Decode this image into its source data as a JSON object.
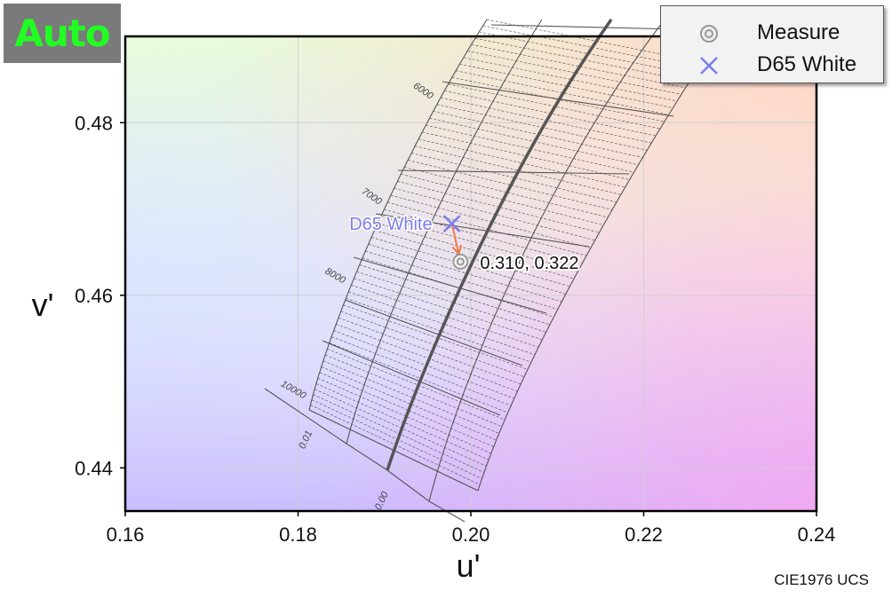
{
  "badge": {
    "label": "Auto",
    "color": "#22ff22"
  },
  "chart_data": {
    "type": "scatter",
    "title": "",
    "xlabel": "u'",
    "ylabel": "v'",
    "xlim": [
      0.16,
      0.24
    ],
    "ylim": [
      0.435,
      0.49
    ],
    "x_ticks": [
      "0.16",
      "0.18",
      "0.20",
      "0.22",
      "0.24"
    ],
    "y_ticks": [
      "0.44",
      "0.46",
      "0.48"
    ],
    "grid": true,
    "legend_position": "top-right",
    "series": [
      {
        "name": "Measure",
        "points": [
          {
            "x": 0.1988,
            "y": 0.4639
          }
        ],
        "color": "#9a9a9a",
        "marker": "double-circle"
      },
      {
        "name": "D65 White",
        "points": [
          {
            "x": 0.1978,
            "y": 0.4683
          }
        ],
        "color": "#7b7bef",
        "marker": "x"
      }
    ],
    "annotations": {
      "measure_label": "0.310,  0.322",
      "white_label": "D65 White",
      "cct_labels": [
        "6000",
        "7000",
        "8000",
        "10000"
      ],
      "duv_labels": [
        "0.01",
        "0.00"
      ]
    }
  },
  "footer": {
    "label": "CIE1976 UCS"
  },
  "legend": {
    "items": [
      {
        "label": "Measure"
      },
      {
        "label": "D65 White"
      }
    ]
  }
}
